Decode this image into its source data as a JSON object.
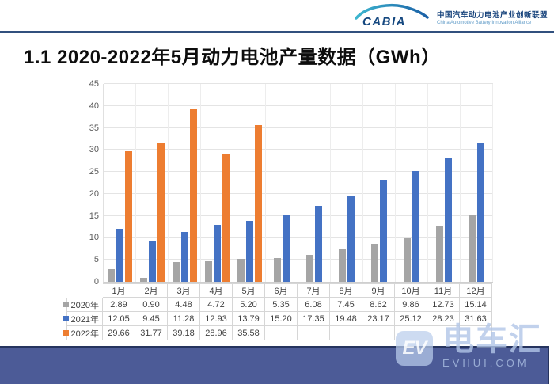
{
  "header": {
    "logo_text": "CABIA",
    "org_name_cn": "中国汽车动力电池产业创新联盟",
    "org_name_en": "China Automotive Battery Innovation Alliance"
  },
  "title": "1.1 2020-2022年5月动力电池产量数据（GWh）",
  "chart_data": {
    "type": "bar",
    "title": "2020-2022年5月动力电池产量数据（GWh）",
    "categories": [
      "1月",
      "2月",
      "3月",
      "4月",
      "5月",
      "6月",
      "7月",
      "8月",
      "9月",
      "10月",
      "11月",
      "12月"
    ],
    "series": [
      {
        "name": "2020年",
        "color": "#a5a5a5",
        "values": [
          2.89,
          0.9,
          4.48,
          4.72,
          5.2,
          5.35,
          6.08,
          7.45,
          8.62,
          9.86,
          12.73,
          15.14
        ]
      },
      {
        "name": "2021年",
        "color": "#4472c4",
        "values": [
          12.05,
          9.45,
          11.28,
          12.93,
          13.79,
          15.2,
          17.35,
          19.48,
          23.17,
          25.12,
          28.23,
          31.63
        ]
      },
      {
        "name": "2022年",
        "color": "#ed7d31",
        "values": [
          29.66,
          31.77,
          39.18,
          28.96,
          35.58,
          null,
          null,
          null,
          null,
          null,
          null,
          null
        ]
      }
    ],
    "xlabel": "",
    "ylabel": "",
    "ylim": [
      0,
      45
    ],
    "ytick_step": 5,
    "grid": true,
    "legend_position": "data-table-left",
    "data_table_shown": true,
    "value_format_decimals": 2
  },
  "watermark": {
    "name_cn": "电车汇",
    "domain": "EVHUI.COM",
    "logo_letters": "EV"
  },
  "colors": {
    "series_2020": "#a5a5a5",
    "series_2021": "#4472c4",
    "series_2022": "#ed7d31",
    "footer_bar": "#4c5b97",
    "header_rule": "#31507e",
    "axis_text": "#595959",
    "table_text": "#3f3f3f",
    "grid_line": "#e4e4e4",
    "title_text": "#0d0d0d"
  }
}
